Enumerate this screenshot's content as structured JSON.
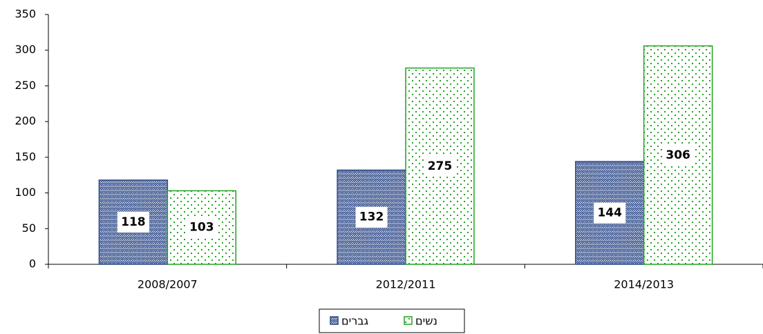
{
  "chart_data": {
    "type": "bar",
    "categories": [
      "2008/2007",
      "2012/2011",
      "2014/2013"
    ],
    "series": [
      {
        "name": "גברים",
        "color": "#2f4b8a",
        "values": [
          118,
          132,
          144
        ]
      },
      {
        "name": "נשים",
        "color": "#1fa31f",
        "values": [
          103,
          275,
          306
        ]
      }
    ],
    "ylim": [
      0,
      350
    ],
    "yticks": [
      0,
      50,
      100,
      150,
      200,
      250,
      300,
      350
    ],
    "legend": "bottom"
  }
}
